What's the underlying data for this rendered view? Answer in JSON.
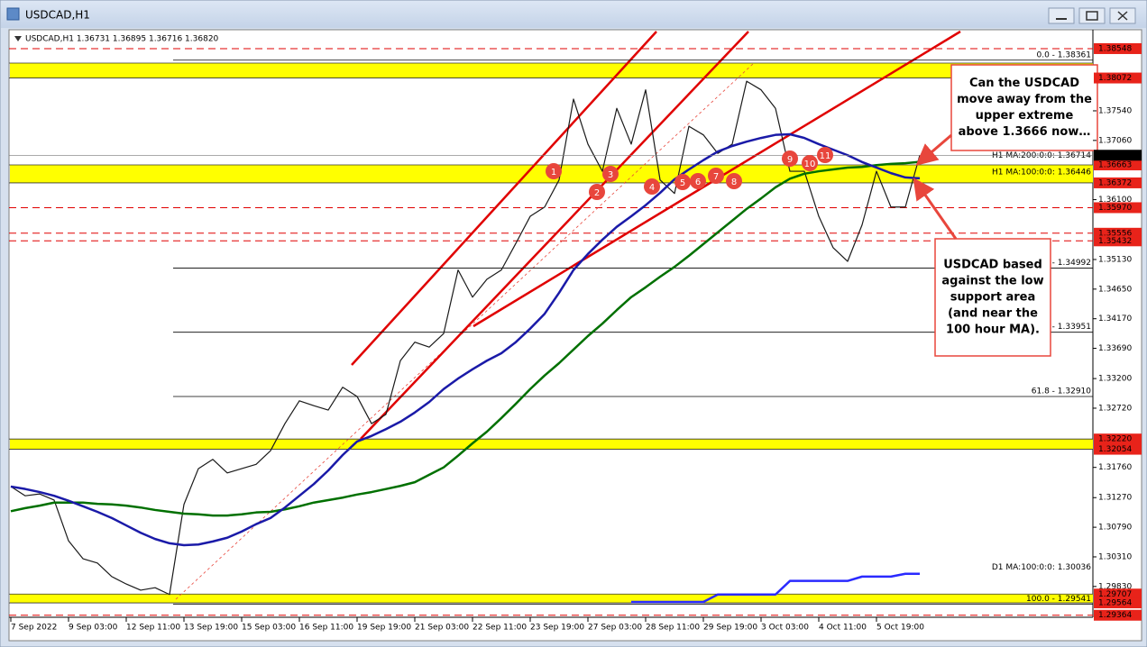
{
  "window": {
    "title": "USDCAD,H1"
  },
  "chart_data": {
    "type": "line",
    "title": "USDCAD,H1 1.36731 1.36895 1.36716 1.36820",
    "categories": [
      "7 Sep 2022",
      null,
      null,
      null,
      "9 Sep 03:00",
      null,
      null,
      null,
      "12 Sep 11:00",
      null,
      null,
      null,
      "13 Sep 19:00",
      null,
      null,
      null,
      "15 Sep 03:00",
      null,
      null,
      null,
      "16 Sep 11:00",
      null,
      null,
      null,
      "19 Sep 19:00",
      null,
      null,
      null,
      "21 Sep 03:00",
      null,
      null,
      null,
      "22 Sep 11:00",
      null,
      null,
      null,
      "23 Sep 19:00",
      null,
      null,
      null,
      "27 Sep 03:00",
      null,
      null,
      null,
      "28 Sep 11:00",
      null,
      null,
      null,
      "29 Sep 19:00",
      null,
      null,
      null,
      "3 Oct 03:00",
      null,
      null,
      null,
      "4 Oct 11:00",
      null,
      null,
      null,
      "5 Oct 19:00",
      null,
      null,
      null
    ],
    "series": [
      {
        "color": "#1a1a1a",
        "values": [
          1.3145,
          1.313,
          1.3133,
          1.3123,
          1.3057,
          1.3028,
          1.3021,
          1.2999,
          1.2987,
          1.2977,
          1.2981,
          1.297,
          1.3116,
          1.3174,
          1.3189,
          1.3167,
          1.3174,
          1.3181,
          1.3203,
          1.3247,
          1.3284,
          1.3276,
          1.3269,
          1.3306,
          1.3291,
          1.3247,
          1.3262,
          1.3349,
          1.3379,
          1.3371,
          1.3393,
          1.3496,
          1.3452,
          1.3481,
          1.3496,
          1.3539,
          1.3583,
          1.3598,
          1.3642,
          1.3773,
          1.37,
          1.3656,
          1.3758,
          1.37,
          1.3788,
          1.3642,
          1.362,
          1.3729,
          1.3715,
          1.3685,
          1.37,
          1.3802,
          1.3788,
          1.3758,
          1.3656,
          1.3656,
          1.3583,
          1.3532,
          1.351,
          1.3569,
          1.3656,
          1.3598,
          1.3598,
          1.3682
        ]
      },
      {
        "name": "H1 MA:200:0:0: 1.36714",
        "color": "#007000",
        "values": [
          1.3105,
          1.311,
          1.3114,
          1.3119,
          1.3119,
          1.3119,
          1.3117,
          1.3116,
          1.3114,
          1.3111,
          1.3107,
          1.3104,
          1.3101,
          1.31,
          1.3098,
          1.3098,
          1.31,
          1.3103,
          1.3104,
          1.3108,
          1.3113,
          1.3119,
          1.3123,
          1.3127,
          1.3132,
          1.3136,
          1.3141,
          1.3146,
          1.3152,
          1.3164,
          1.3176,
          1.3195,
          1.3215,
          1.3234,
          1.3256,
          1.3279,
          1.3303,
          1.3325,
          1.3345,
          1.3367,
          1.3389,
          1.3409,
          1.3431,
          1.3452,
          1.3468,
          1.3485,
          1.3501,
          1.3519,
          1.3538,
          1.3557,
          1.3576,
          1.3595,
          1.3612,
          1.363,
          1.3644,
          1.3652,
          1.3656,
          1.3659,
          1.3662,
          1.3663,
          1.3666,
          1.3668,
          1.3669,
          1.36714
        ]
      },
      {
        "name": "H1 MA:100:0:0: 1.36446",
        "color": "#1a1aa8",
        "values": [
          1.3145,
          1.3141,
          1.3136,
          1.313,
          1.3122,
          1.3113,
          1.3104,
          1.3094,
          1.3082,
          1.307,
          1.306,
          1.3053,
          1.305,
          1.3051,
          1.3056,
          1.3062,
          1.3072,
          1.3084,
          1.3094,
          1.3111,
          1.313,
          1.3149,
          1.3171,
          1.3196,
          1.3218,
          1.3227,
          1.3238,
          1.325,
          1.3265,
          1.3282,
          1.3303,
          1.332,
          1.3335,
          1.3349,
          1.3361,
          1.3379,
          1.3401,
          1.3425,
          1.3459,
          1.3496,
          1.3522,
          1.3545,
          1.3566,
          1.3583,
          1.3601,
          1.3621,
          1.3643,
          1.3659,
          1.3674,
          1.3688,
          1.3697,
          1.3704,
          1.371,
          1.3715,
          1.3716,
          1.371,
          1.37,
          1.3691,
          1.3682,
          1.3671,
          1.3662,
          1.3653,
          1.3646,
          1.36446
        ]
      },
      {
        "name": "D1 MA:100:0:0: 1.30036",
        "color": "#2a2aff",
        "values": [
          null,
          null,
          null,
          null,
          null,
          null,
          null,
          null,
          null,
          null,
          null,
          null,
          null,
          null,
          null,
          null,
          null,
          null,
          null,
          null,
          null,
          null,
          null,
          null,
          null,
          null,
          null,
          null,
          null,
          null,
          null,
          null,
          null,
          null,
          null,
          null,
          null,
          null,
          null,
          null,
          null,
          null,
          null,
          1.2958,
          1.2958,
          1.2958,
          1.2958,
          1.2958,
          1.2958,
          1.297,
          1.297,
          1.297,
          1.297,
          1.297,
          1.2992,
          1.2992,
          1.2992,
          1.2992,
          1.2992,
          1.2999,
          1.2999,
          1.2999,
          1.30036,
          1.30036
        ]
      }
    ],
    "ylim": [
      1.29331,
      1.38825
    ],
    "yticks": [
      {
        "value": 1.3754,
        "label": "1.37540"
      },
      {
        "value": 1.3706,
        "label": "1.37060"
      },
      {
        "value": 1.361,
        "label": "1.36100"
      },
      {
        "value": 1.3513,
        "label": "1.35130"
      },
      {
        "value": 1.3465,
        "label": "1.34650"
      },
      {
        "value": 1.3417,
        "label": "1.34170"
      },
      {
        "value": 1.3369,
        "label": "1.33690"
      },
      {
        "value": 1.332,
        "label": "1.33200"
      },
      {
        "value": 1.3272,
        "label": "1.32720"
      },
      {
        "value": 1.3176,
        "label": "1.31760"
      },
      {
        "value": 1.3127,
        "label": "1.31270"
      },
      {
        "value": 1.3079,
        "label": "1.30790"
      },
      {
        "value": 1.3031,
        "label": "1.30310"
      },
      {
        "value": 1.2983,
        "label": "1.29830"
      }
    ],
    "grid": false,
    "zone_color": "#ffff00",
    "zones": [
      [
        1.38072,
        1.38314
      ],
      [
        1.36372,
        1.36663
      ],
      [
        1.32054,
        1.3222
      ],
      [
        1.29564,
        1.29707
      ]
    ],
    "price_labels": [
      {
        "value": 1.38548,
        "label": "1.38548",
        "style": "dashed"
      },
      {
        "value": 1.38072,
        "label": "1.38072",
        "style": "zone"
      },
      {
        "value": 1.36663,
        "label": "1.36663",
        "style": "zone"
      },
      {
        "value": 1.36372,
        "label": "1.36372",
        "style": "zone"
      },
      {
        "value": 1.3597,
        "label": "1.35970",
        "style": "dashed"
      },
      {
        "value": 1.35556,
        "label": "1.35556",
        "style": "dashed"
      },
      {
        "value": 1.35432,
        "label": "1.35432",
        "style": "dashed"
      },
      {
        "value": 1.3222,
        "label": "1.32220",
        "style": "zone"
      },
      {
        "value": 1.32054,
        "label": "1.32054",
        "style": "zone"
      },
      {
        "value": 1.29707,
        "label": "1.29707",
        "style": "zone"
      },
      {
        "value": 1.29564,
        "label": "1.29564",
        "style": "zone"
      },
      {
        "value": 1.29364,
        "label": "1.29364",
        "style": "dashed"
      }
    ],
    "current_price": {
      "value": 1.3682,
      "label": "1.36820"
    },
    "fib_levels": [
      {
        "value": 1.38361,
        "label": "0.0 - 1.38361"
      },
      {
        "value": 1.34992,
        "label": "38.2 - 1.34992"
      },
      {
        "value": 1.33951,
        "label": "50.0 - 1.33951"
      },
      {
        "value": 1.3291,
        "label": "61.8 - 1.32910"
      },
      {
        "value": 1.29541,
        "label": "100.0 - 1.29541"
      }
    ],
    "markers": [
      "1",
      "2",
      "3",
      "4",
      "5",
      "6",
      "7",
      "8",
      "9",
      "10",
      "11"
    ],
    "callouts": [
      [
        "Can the USDCAD",
        "move away from the",
        "upper extreme",
        "above 1.3666 now…"
      ],
      [
        "USDCAD based",
        "against the low",
        "support area",
        "(and near the",
        "100 hour MA)."
      ]
    ]
  }
}
